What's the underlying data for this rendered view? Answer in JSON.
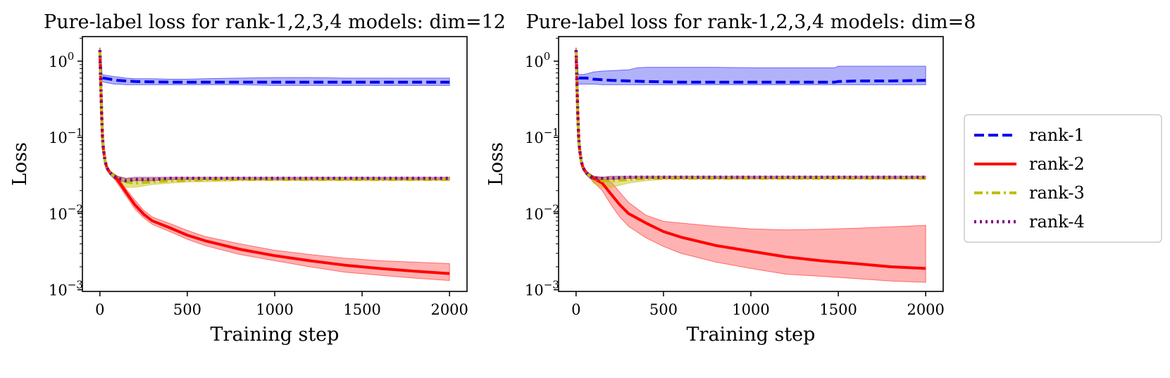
{
  "chart_data": [
    {
      "type": "line",
      "title": "Pure-label loss for rank-1,2,3,4 models: dim=12",
      "xlabel": "Training step",
      "ylabel": "Loss",
      "xlim": [
        -100,
        2100
      ],
      "ylim": [
        0.00095,
        2.1
      ],
      "yscale": "log",
      "xticks": [
        {
          "value": 0,
          "label": "0"
        },
        {
          "value": 500,
          "label": "500"
        },
        {
          "value": 1000,
          "label": "1000"
        },
        {
          "value": 1500,
          "label": "1500"
        },
        {
          "value": 2000,
          "label": "2000"
        }
      ],
      "yticks": [
        {
          "value": 1,
          "base": "10",
          "exp": "0"
        },
        {
          "value": 0.1,
          "base": "10",
          "exp": "−1"
        },
        {
          "value": 0.01,
          "base": "10",
          "exp": "−2"
        },
        {
          "value": 0.001,
          "base": "10",
          "exp": "−3"
        }
      ],
      "grid": false,
      "series": [
        {
          "name": "rank-1",
          "color": "#0000ee",
          "dash": "dashed",
          "x": [
            0,
            5,
            10,
            20,
            40,
            60,
            80,
            100,
            150,
            200,
            300,
            400,
            500,
            600,
            800,
            1000,
            1200,
            1400,
            1600,
            1800,
            2000
          ],
          "mean": [
            1.4,
            0.7,
            0.62,
            0.6,
            0.59,
            0.58,
            0.57,
            0.56,
            0.55,
            0.54,
            0.535,
            0.53,
            0.53,
            0.53,
            0.53,
            0.53,
            0.53,
            0.53,
            0.53,
            0.53,
            0.53
          ],
          "lower": [
            1.2,
            0.6,
            0.55,
            0.53,
            0.52,
            0.51,
            0.5,
            0.5,
            0.49,
            0.49,
            0.49,
            0.49,
            0.49,
            0.49,
            0.49,
            0.48,
            0.48,
            0.48,
            0.48,
            0.48,
            0.48
          ],
          "upper": [
            1.5,
            0.75,
            0.68,
            0.66,
            0.65,
            0.64,
            0.63,
            0.62,
            0.6,
            0.59,
            0.59,
            0.58,
            0.58,
            0.59,
            0.6,
            0.61,
            0.61,
            0.6,
            0.6,
            0.6,
            0.6
          ]
        },
        {
          "name": "rank-2",
          "color": "#ff0000",
          "dash": "solid",
          "x": [
            0,
            5,
            10,
            15,
            20,
            30,
            40,
            60,
            80,
            100,
            150,
            200,
            250,
            300,
            400,
            500,
            600,
            800,
            1000,
            1200,
            1400,
            1600,
            1800,
            2000
          ],
          "mean": [
            1.4,
            0.5,
            0.2,
            0.1,
            0.07,
            0.048,
            0.04,
            0.034,
            0.031,
            0.028,
            0.019,
            0.013,
            0.0098,
            0.008,
            0.0065,
            0.0052,
            0.0044,
            0.0034,
            0.0028,
            0.0024,
            0.0021,
            0.0019,
            0.00175,
            0.00163
          ],
          "lower": [
            1.3,
            0.45,
            0.18,
            0.09,
            0.065,
            0.045,
            0.037,
            0.032,
            0.029,
            0.025,
            0.017,
            0.0115,
            0.0088,
            0.0072,
            0.0058,
            0.0046,
            0.0038,
            0.0029,
            0.0024,
            0.002,
            0.0017,
            0.00155,
            0.00142,
            0.00132
          ],
          "upper": [
            1.5,
            0.55,
            0.22,
            0.11,
            0.075,
            0.05,
            0.042,
            0.036,
            0.033,
            0.031,
            0.021,
            0.015,
            0.011,
            0.009,
            0.0074,
            0.006,
            0.005,
            0.004,
            0.0033,
            0.0029,
            0.0026,
            0.0024,
            0.0023,
            0.0022
          ]
        },
        {
          "name": "rank-3",
          "color": "#bfbf00",
          "dash": "dashdot",
          "x": [
            0,
            5,
            10,
            15,
            20,
            30,
            40,
            60,
            80,
            100,
            150,
            200,
            300,
            400,
            500,
            600,
            800,
            1000,
            1200,
            1400,
            1600,
            1800,
            2000
          ],
          "mean": [
            1.4,
            0.5,
            0.2,
            0.1,
            0.07,
            0.048,
            0.04,
            0.034,
            0.031,
            0.029,
            0.026,
            0.025,
            0.026,
            0.027,
            0.027,
            0.028,
            0.028,
            0.028,
            0.028,
            0.028,
            0.028,
            0.028,
            0.028
          ],
          "lower": [
            1.3,
            0.45,
            0.18,
            0.09,
            0.065,
            0.045,
            0.037,
            0.032,
            0.029,
            0.026,
            0.022,
            0.022,
            0.024,
            0.025,
            0.026,
            0.026,
            0.027,
            0.027,
            0.027,
            0.027,
            0.027,
            0.027,
            0.027
          ],
          "upper": [
            1.5,
            0.55,
            0.22,
            0.11,
            0.075,
            0.05,
            0.042,
            0.036,
            0.033,
            0.031,
            0.029,
            0.029,
            0.029,
            0.029,
            0.029,
            0.029,
            0.029,
            0.029,
            0.029,
            0.029,
            0.029,
            0.029,
            0.029
          ]
        },
        {
          "name": "rank-4",
          "color": "#800080",
          "dash": "dotted",
          "x": [
            0,
            5,
            10,
            15,
            20,
            30,
            40,
            60,
            80,
            100,
            150,
            200,
            300,
            400,
            500,
            600,
            800,
            1000,
            1200,
            1400,
            1600,
            1800,
            2000
          ],
          "mean": [
            1.4,
            0.5,
            0.2,
            0.1,
            0.07,
            0.048,
            0.04,
            0.034,
            0.031,
            0.029,
            0.027,
            0.028,
            0.028,
            0.029,
            0.029,
            0.029,
            0.029,
            0.029,
            0.029,
            0.029,
            0.029,
            0.029,
            0.029
          ],
          "lower": [
            1.3,
            0.45,
            0.18,
            0.09,
            0.065,
            0.045,
            0.037,
            0.032,
            0.029,
            0.027,
            0.026,
            0.027,
            0.027,
            0.028,
            0.028,
            0.028,
            0.028,
            0.028,
            0.028,
            0.028,
            0.028,
            0.028,
            0.028
          ],
          "upper": [
            1.5,
            0.55,
            0.22,
            0.11,
            0.075,
            0.05,
            0.042,
            0.036,
            0.033,
            0.031,
            0.029,
            0.03,
            0.03,
            0.03,
            0.03,
            0.03,
            0.03,
            0.03,
            0.03,
            0.03,
            0.03,
            0.03,
            0.03
          ]
        }
      ]
    },
    {
      "type": "line",
      "title": "Pure-label loss for rank-1,2,3,4 models: dim=8",
      "xlabel": "Training step",
      "ylabel": "Loss",
      "xlim": [
        -100,
        2100
      ],
      "ylim": [
        0.00095,
        2.1
      ],
      "yscale": "log",
      "xticks": [
        {
          "value": 0,
          "label": "0"
        },
        {
          "value": 500,
          "label": "500"
        },
        {
          "value": 1000,
          "label": "1000"
        },
        {
          "value": 1500,
          "label": "1500"
        },
        {
          "value": 2000,
          "label": "2000"
        }
      ],
      "yticks": [
        {
          "value": 1,
          "base": "10",
          "exp": "0"
        },
        {
          "value": 0.1,
          "base": "10",
          "exp": "−1"
        },
        {
          "value": 0.01,
          "base": "10",
          "exp": "−2"
        },
        {
          "value": 0.001,
          "base": "10",
          "exp": "−3"
        }
      ],
      "grid": false,
      "series": [
        {
          "name": "rank-1",
          "color": "#0000ee",
          "dash": "dashed",
          "x": [
            0,
            5,
            10,
            20,
            40,
            60,
            80,
            100,
            150,
            200,
            300,
            350,
            400,
            500,
            600,
            800,
            1000,
            1200,
            1400,
            1480,
            1500,
            1600,
            1800,
            2000
          ],
          "mean": [
            1.4,
            0.7,
            0.62,
            0.6,
            0.6,
            0.6,
            0.59,
            0.58,
            0.57,
            0.56,
            0.55,
            0.545,
            0.54,
            0.535,
            0.53,
            0.53,
            0.53,
            0.53,
            0.53,
            0.53,
            0.54,
            0.55,
            0.55,
            0.56
          ],
          "lower": [
            1.2,
            0.6,
            0.52,
            0.5,
            0.5,
            0.5,
            0.5,
            0.5,
            0.49,
            0.49,
            0.49,
            0.49,
            0.49,
            0.49,
            0.49,
            0.49,
            0.49,
            0.49,
            0.49,
            0.49,
            0.49,
            0.49,
            0.49,
            0.49
          ],
          "upper": [
            1.5,
            0.75,
            0.68,
            0.67,
            0.67,
            0.68,
            0.7,
            0.72,
            0.74,
            0.75,
            0.77,
            0.82,
            0.83,
            0.83,
            0.83,
            0.83,
            0.82,
            0.82,
            0.82,
            0.82,
            0.86,
            0.86,
            0.86,
            0.86
          ]
        },
        {
          "name": "rank-2",
          "color": "#ff0000",
          "dash": "solid",
          "x": [
            0,
            5,
            10,
            15,
            20,
            30,
            40,
            60,
            80,
            100,
            150,
            200,
            250,
            300,
            400,
            500,
            600,
            800,
            1000,
            1200,
            1400,
            1600,
            1800,
            2000
          ],
          "mean": [
            1.4,
            0.5,
            0.2,
            0.1,
            0.07,
            0.048,
            0.04,
            0.034,
            0.031,
            0.029,
            0.025,
            0.018,
            0.013,
            0.01,
            0.0075,
            0.0058,
            0.0049,
            0.0038,
            0.0032,
            0.0027,
            0.0024,
            0.0022,
            0.002,
            0.0019
          ],
          "lower": [
            1.3,
            0.45,
            0.18,
            0.09,
            0.065,
            0.045,
            0.037,
            0.032,
            0.029,
            0.026,
            0.02,
            0.013,
            0.009,
            0.0068,
            0.0048,
            0.0037,
            0.003,
            0.0023,
            0.0019,
            0.0016,
            0.0015,
            0.0014,
            0.0013,
            0.00125
          ],
          "upper": [
            1.5,
            0.55,
            0.22,
            0.11,
            0.075,
            0.05,
            0.042,
            0.036,
            0.033,
            0.031,
            0.029,
            0.026,
            0.019,
            0.014,
            0.0095,
            0.0079,
            0.0075,
            0.0068,
            0.0063,
            0.0061,
            0.0062,
            0.0064,
            0.0067,
            0.007
          ]
        },
        {
          "name": "rank-3",
          "color": "#bfbf00",
          "dash": "dashdot",
          "x": [
            0,
            5,
            10,
            15,
            20,
            30,
            40,
            60,
            80,
            100,
            150,
            200,
            300,
            400,
            500,
            600,
            800,
            1000,
            1200,
            1400,
            1600,
            1800,
            2000
          ],
          "mean": [
            1.4,
            0.5,
            0.2,
            0.1,
            0.07,
            0.048,
            0.04,
            0.034,
            0.031,
            0.029,
            0.027,
            0.027,
            0.028,
            0.029,
            0.029,
            0.029,
            0.029,
            0.029,
            0.029,
            0.029,
            0.029,
            0.029,
            0.029
          ],
          "lower": [
            1.3,
            0.45,
            0.18,
            0.09,
            0.065,
            0.045,
            0.037,
            0.032,
            0.029,
            0.025,
            0.022,
            0.022,
            0.025,
            0.027,
            0.028,
            0.028,
            0.028,
            0.028,
            0.028,
            0.028,
            0.028,
            0.028,
            0.028
          ],
          "upper": [
            1.5,
            0.55,
            0.22,
            0.11,
            0.075,
            0.05,
            0.042,
            0.036,
            0.033,
            0.031,
            0.03,
            0.03,
            0.03,
            0.03,
            0.03,
            0.03,
            0.03,
            0.03,
            0.03,
            0.03,
            0.03,
            0.03,
            0.03
          ]
        },
        {
          "name": "rank-4",
          "color": "#800080",
          "dash": "dotted",
          "x": [
            0,
            5,
            10,
            15,
            20,
            30,
            40,
            60,
            80,
            100,
            150,
            200,
            300,
            400,
            500,
            600,
            800,
            1000,
            1200,
            1400,
            1600,
            1800,
            2000
          ],
          "mean": [
            1.4,
            0.5,
            0.2,
            0.1,
            0.07,
            0.048,
            0.04,
            0.034,
            0.031,
            0.029,
            0.029,
            0.029,
            0.03,
            0.03,
            0.03,
            0.03,
            0.03,
            0.03,
            0.03,
            0.03,
            0.03,
            0.03,
            0.03
          ],
          "lower": [
            1.3,
            0.45,
            0.18,
            0.09,
            0.065,
            0.045,
            0.037,
            0.032,
            0.029,
            0.028,
            0.028,
            0.028,
            0.029,
            0.029,
            0.029,
            0.029,
            0.029,
            0.029,
            0.029,
            0.029,
            0.029,
            0.029,
            0.029
          ],
          "upper": [
            1.5,
            0.55,
            0.22,
            0.11,
            0.075,
            0.05,
            0.042,
            0.036,
            0.033,
            0.031,
            0.03,
            0.031,
            0.031,
            0.031,
            0.031,
            0.031,
            0.031,
            0.031,
            0.031,
            0.031,
            0.031,
            0.031,
            0.031
          ]
        }
      ]
    }
  ],
  "legend": {
    "placement": "right",
    "entries": [
      {
        "label": "rank-1",
        "color": "#0000ee",
        "dash": "dashed"
      },
      {
        "label": "rank-2",
        "color": "#ff0000",
        "dash": "solid"
      },
      {
        "label": "rank-3",
        "color": "#bfbf00",
        "dash": "dashdot"
      },
      {
        "label": "rank-4",
        "color": "#800080",
        "dash": "dotted"
      }
    ]
  }
}
